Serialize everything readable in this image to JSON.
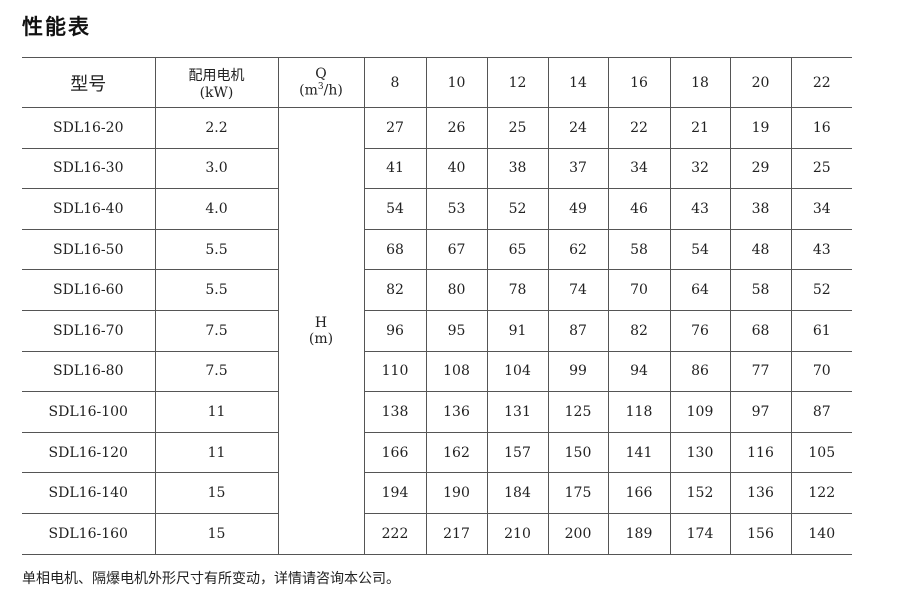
{
  "title": "性能表",
  "table": {
    "headers": {
      "model": "型号",
      "motor": "配用电机",
      "motor_unit": "(kW)",
      "q": "Q",
      "q_unit_pre": "(m",
      "q_unit_sup": "3",
      "q_unit_post": "/h)",
      "h": "H",
      "h_unit": "(m)"
    },
    "flows": [
      "8",
      "10",
      "12",
      "14",
      "16",
      "18",
      "20",
      "22"
    ],
    "rows": [
      {
        "model": "SDL16-20",
        "kw": "2.2",
        "h": [
          "27",
          "26",
          "25",
          "24",
          "22",
          "21",
          "19",
          "16"
        ]
      },
      {
        "model": "SDL16-30",
        "kw": "3.0",
        "h": [
          "41",
          "40",
          "38",
          "37",
          "34",
          "32",
          "29",
          "25"
        ]
      },
      {
        "model": "SDL16-40",
        "kw": "4.0",
        "h": [
          "54",
          "53",
          "52",
          "49",
          "46",
          "43",
          "38",
          "34"
        ]
      },
      {
        "model": "SDL16-50",
        "kw": "5.5",
        "h": [
          "68",
          "67",
          "65",
          "62",
          "58",
          "54",
          "48",
          "43"
        ]
      },
      {
        "model": "SDL16-60",
        "kw": "5.5",
        "h": [
          "82",
          "80",
          "78",
          "74",
          "70",
          "64",
          "58",
          "52"
        ]
      },
      {
        "model": "SDL16-70",
        "kw": "7.5",
        "h": [
          "96",
          "95",
          "91",
          "87",
          "82",
          "76",
          "68",
          "61"
        ]
      },
      {
        "model": "SDL16-80",
        "kw": "7.5",
        "h": [
          "110",
          "108",
          "104",
          "99",
          "94",
          "86",
          "77",
          "70"
        ]
      },
      {
        "model": "SDL16-100",
        "kw": "11",
        "h": [
          "138",
          "136",
          "131",
          "125",
          "118",
          "109",
          "97",
          "87"
        ]
      },
      {
        "model": "SDL16-120",
        "kw": "11",
        "h": [
          "166",
          "162",
          "157",
          "150",
          "141",
          "130",
          "116",
          "105"
        ]
      },
      {
        "model": "SDL16-140",
        "kw": "15",
        "h": [
          "194",
          "190",
          "184",
          "175",
          "166",
          "152",
          "136",
          "122"
        ]
      },
      {
        "model": "SDL16-160",
        "kw": "15",
        "h": [
          "222",
          "217",
          "210",
          "200",
          "189",
          "174",
          "156",
          "140"
        ]
      }
    ]
  },
  "note": "单相电机、隔爆电机外形尺寸有所变动，详情请咨询本公司。"
}
